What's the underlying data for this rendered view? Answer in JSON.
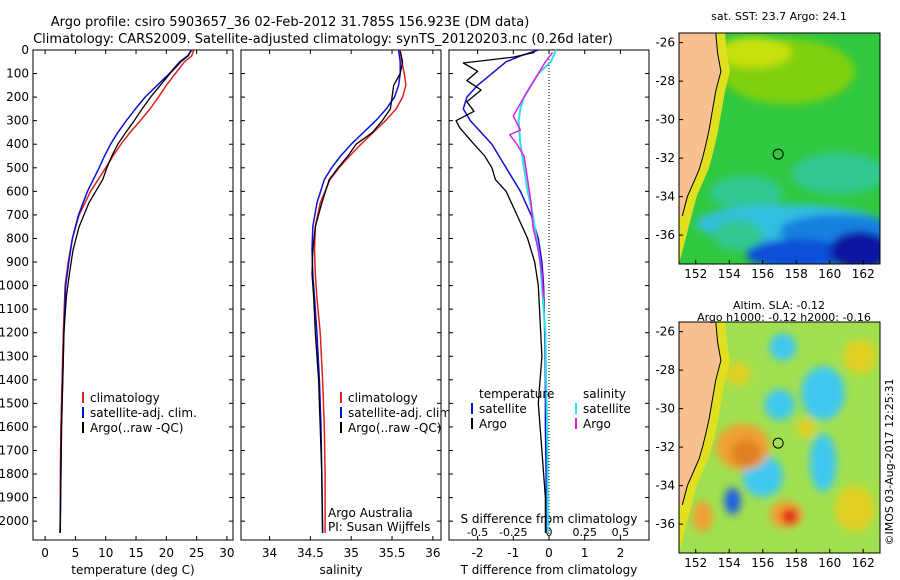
{
  "header": {
    "title_line1": "Argo profile: csiro 5903657_36 02-Feb-2012 31.785S 156.923E (DM data)",
    "title_line2": "Climatology: CARS2009. Satellite-adjusted climatology: synTS_20120203.nc (0.26d later)"
  },
  "colors": {
    "climatology": "#e02020",
    "satellite": "#1010d0",
    "argo": "#000000",
    "salinity_satellite": "#30e0e8",
    "salinity_argo": "#e020e0",
    "land": "#f8c090"
  },
  "footer": {
    "stamp": "©IMOS 03-Aug-2017 12:25:31"
  },
  "chart_data": [
    {
      "id": "temperature",
      "type": "line",
      "xlabel": "temperature (deg C)",
      "xlim": [
        -2,
        31
      ],
      "xticks": [
        0,
        5,
        10,
        15,
        20,
        25,
        30
      ],
      "xtick_labels": [
        "0",
        "5",
        "10",
        "15",
        "20",
        "25",
        "30"
      ],
      "ylim": [
        2080,
        0
      ],
      "yticks": [
        0,
        100,
        200,
        300,
        400,
        500,
        600,
        700,
        800,
        900,
        1000,
        1100,
        1200,
        1300,
        1400,
        1500,
        1600,
        1700,
        1800,
        1900,
        2000
      ],
      "legend": {
        "position": "lower-middle",
        "entries": [
          "climatology",
          "satellite-adj. clim.",
          "Argo(..raw -QC)"
        ]
      },
      "series": [
        {
          "name": "climatology",
          "color": "#e02020",
          "width": 1.5,
          "x": [
            24.5,
            24.2,
            23.0,
            21.5,
            20.0,
            18.7,
            17.3,
            15.7,
            14.0,
            12.5,
            11.2,
            10.0,
            7.5,
            5.6,
            4.5,
            3.8,
            3.3,
            3.0,
            2.8,
            2.6,
            2.5,
            2.5,
            2.4
          ],
          "y": [
            0,
            25,
            50,
            100,
            150,
            200,
            250,
            300,
            350,
            400,
            450,
            500,
            600,
            700,
            800,
            900,
            1000,
            1200,
            1400,
            1600,
            1800,
            2000,
            2050
          ]
        },
        {
          "name": "satellite-adj. clim.",
          "color": "#1010d0",
          "width": 1.5,
          "x": [
            24.2,
            23.5,
            22.2,
            20.5,
            18.5,
            16.5,
            14.9,
            13.4,
            12.0,
            10.8,
            9.8,
            8.9,
            7.0,
            5.5,
            4.5,
            3.9,
            3.4,
            3.1,
            2.9,
            2.7,
            2.6,
            2.5,
            2.5
          ],
          "y": [
            0,
            25,
            50,
            100,
            150,
            200,
            250,
            300,
            350,
            400,
            450,
            500,
            600,
            700,
            800,
            900,
            1000,
            1200,
            1400,
            1600,
            1800,
            2000,
            2050
          ]
        },
        {
          "name": "Argo(..raw -QC)",
          "color": "#000000",
          "width": 1.3,
          "x": [
            24.0,
            23.6,
            22.4,
            20.6,
            19.0,
            17.4,
            16.0,
            14.7,
            13.3,
            12.0,
            11.0,
            10.2,
            9.5,
            7.2,
            5.6,
            4.6,
            4.0,
            3.5,
            3.1,
            2.9,
            2.7,
            2.6,
            2.5,
            2.5
          ],
          "y": [
            5,
            25,
            50,
            100,
            150,
            200,
            250,
            300,
            350,
            400,
            450,
            500,
            550,
            650,
            750,
            850,
            950,
            1050,
            1200,
            1400,
            1600,
            1800,
            2000,
            2050
          ]
        }
      ]
    },
    {
      "id": "salinity",
      "type": "line",
      "xlabel": "salinity",
      "xlim": [
        33.65,
        36.1
      ],
      "xticks": [
        34,
        34.5,
        35,
        35.5,
        36
      ],
      "xtick_labels": [
        "34",
        "34.5",
        "35",
        "35.5",
        "36"
      ],
      "ylim": [
        2080,
        0
      ],
      "legend": {
        "position": "lower-right",
        "entries": [
          "climatology",
          "satellite-adj. clim.",
          "Argo(..raw -QC)"
        ]
      },
      "annotation": [
        "Argo Australia",
        "PI: Susan Wijffels"
      ],
      "series": [
        {
          "name": "climatology",
          "color": "#e02020",
          "width": 1.5,
          "x": [
            35.6,
            35.62,
            35.65,
            35.67,
            35.63,
            35.55,
            35.42,
            35.27,
            35.12,
            34.98,
            34.85,
            34.74,
            34.62,
            34.56,
            34.55,
            34.56,
            34.58,
            34.62,
            34.65,
            34.67,
            34.68,
            34.68
          ],
          "y": [
            0,
            50,
            100,
            150,
            200,
            250,
            300,
            350,
            400,
            450,
            500,
            550,
            650,
            750,
            850,
            950,
            1050,
            1200,
            1400,
            1600,
            1800,
            2050
          ]
        },
        {
          "name": "satellite-adj. clim.",
          "color": "#1010d0",
          "width": 1.5,
          "x": [
            35.58,
            35.6,
            35.6,
            35.58,
            35.53,
            35.43,
            35.3,
            35.15,
            35.0,
            34.87,
            34.76,
            34.67,
            34.58,
            34.53,
            34.52,
            34.53,
            34.55,
            34.58,
            34.61,
            34.63,
            34.64,
            34.65
          ],
          "y": [
            0,
            50,
            100,
            150,
            200,
            250,
            300,
            350,
            400,
            450,
            500,
            550,
            650,
            750,
            850,
            950,
            1050,
            1200,
            1400,
            1600,
            1800,
            2050
          ]
        },
        {
          "name": "Argo(..raw -QC)",
          "color": "#000000",
          "width": 1.3,
          "x": [
            35.6,
            35.63,
            35.6,
            35.52,
            35.48,
            35.38,
            35.26,
            35.06,
            34.96,
            34.84,
            34.73,
            34.64,
            34.56,
            34.53,
            34.52,
            34.54,
            34.56,
            34.6,
            34.62,
            34.64,
            34.65
          ],
          "y": [
            5,
            50,
            100,
            150,
            250,
            300,
            350,
            400,
            450,
            500,
            550,
            650,
            750,
            850,
            950,
            1050,
            1200,
            1400,
            1600,
            1800,
            2050
          ]
        }
      ]
    },
    {
      "id": "difference",
      "type": "line",
      "xlabel": "T difference from climatology",
      "top_label": "S difference from climatology",
      "xlim": [
        -2.8,
        2.8
      ],
      "xticks": [
        -2,
        -1,
        0,
        1,
        2
      ],
      "xtick_labels": [
        "-2",
        "-1",
        "0",
        "1",
        "2"
      ],
      "top_ticks": [
        -2,
        -1,
        0,
        1,
        2
      ],
      "top_tick_labels": [
        "-0.5",
        "-0.25",
        "0",
        "0.25",
        "0.5"
      ],
      "ylim": [
        2080,
        0
      ],
      "legend": {
        "position": "lower-middle",
        "headers": [
          "temperature",
          "salinity"
        ],
        "entries": [
          "satellite",
          "Argo",
          "satellite",
          "Argo"
        ]
      },
      "series": [
        {
          "name": "temperature satellite",
          "color": "#1010d0",
          "width": 1.5,
          "x": [
            -0.3,
            -0.8,
            -1.2,
            -1.6,
            -2.0,
            -2.3,
            -2.4,
            -2.2,
            -1.6,
            -1.2,
            -0.8,
            -0.5,
            -0.3,
            -0.2,
            -0.15,
            -0.12,
            -0.1,
            -0.1,
            -0.08,
            -0.08
          ],
          "y": [
            0,
            25,
            50,
            100,
            150,
            200,
            250,
            300,
            400,
            500,
            600,
            700,
            800,
            900,
            1000,
            1200,
            1400,
            1600,
            1800,
            2050
          ]
        },
        {
          "name": "temperature Argo",
          "color": "#000000",
          "width": 1.3,
          "x": [
            -0.4,
            -1.0,
            -2.4,
            -2.0,
            -2.3,
            -1.9,
            -2.3,
            -2.1,
            -2.6,
            -2.5,
            -2.1,
            -1.8,
            -1.6,
            -1.5,
            -1.2,
            -0.9,
            -0.6,
            -0.4,
            -0.3,
            -0.25,
            -0.2,
            -0.3,
            -0.2,
            -0.1,
            -0.1
          ],
          "y": [
            10,
            30,
            55,
            90,
            130,
            170,
            220,
            260,
            300,
            330,
            400,
            450,
            500,
            550,
            600,
            700,
            800,
            900,
            1000,
            1150,
            1300,
            1500,
            1700,
            1900,
            2050
          ]
        },
        {
          "name": "salinity satellite",
          "color": "#30e0e8",
          "width": 2,
          "x": [
            0.2,
            0.05,
            -0.3,
            -0.5,
            -0.7,
            -0.8,
            -0.85,
            -0.8,
            -0.7,
            -0.6,
            -0.45,
            -0.35,
            -0.25,
            -0.2,
            -0.15,
            -0.1,
            -0.08,
            -0.05,
            -0.04,
            -0.03
          ],
          "y": [
            0,
            50,
            100,
            150,
            200,
            250,
            300,
            400,
            500,
            600,
            700,
            800,
            900,
            1000,
            1100,
            1200,
            1400,
            1600,
            1800,
            2050
          ]
        },
        {
          "name": "salinity Argo",
          "color": "#e020e0",
          "width": 1.5,
          "x": [
            0.1,
            -0.1,
            -0.3,
            -0.5,
            -0.7,
            -1.0,
            -0.8,
            -1.1,
            -0.9,
            -0.7,
            -0.6,
            -0.5,
            -0.45,
            -0.3,
            -0.2,
            -0.15
          ],
          "y": [
            10,
            50,
            100,
            150,
            200,
            280,
            340,
            360,
            400,
            450,
            550,
            650,
            750,
            850,
            950,
            1050
          ]
        }
      ]
    },
    {
      "id": "sst_map",
      "type": "heatmap",
      "title": "sat. SST: 23.7 Argo: 24.1",
      "xticks": [
        152,
        154,
        156,
        158,
        160,
        162
      ],
      "yticks": [
        -26,
        -28,
        -30,
        -32,
        -34,
        -36
      ],
      "xlim": [
        151,
        163
      ],
      "ylim": [
        -37.5,
        -25.5
      ],
      "marker": {
        "lon": 156.92,
        "lat": -31.79
      },
      "coast": {
        "lon": [
          153.2,
          153.3,
          153.5,
          153.2,
          153.0,
          152.8,
          152.6,
          152.4,
          152.2,
          151.9,
          151.5,
          151.2
        ],
        "lat": [
          -25.5,
          -26.5,
          -27.5,
          -28.5,
          -29.5,
          -30.5,
          -31.3,
          -32.0,
          -32.6,
          -33.2,
          -34.0,
          -35.0
        ]
      },
      "color_zones": [
        {
          "color": "#80d010",
          "lon": 157.5,
          "lat": -27.5,
          "rx": 4.0,
          "ry": 1.7
        },
        {
          "color": "#c8e010",
          "lon": 155.5,
          "lat": -26.5,
          "rx": 2.2,
          "ry": 0.8
        },
        {
          "color": "#30c890",
          "lon": 160.5,
          "lat": -32.8,
          "rx": 2.8,
          "ry": 1.1
        },
        {
          "color": "#30c890",
          "lon": 155.0,
          "lat": -33.8,
          "rx": 2.2,
          "ry": 0.9
        },
        {
          "color": "#30c0e0",
          "lon": 157.5,
          "lat": -35.4,
          "rx": 5.5,
          "ry": 1.0
        },
        {
          "color": "#1880e0",
          "lon": 160.5,
          "lat": -35.8,
          "rx": 3.5,
          "ry": 0.9
        },
        {
          "color": "#1050d8",
          "lon": 158.0,
          "lat": -37.0,
          "rx": 3.0,
          "ry": 0.8
        },
        {
          "color": "#0818a0",
          "lon": 161.8,
          "lat": -36.8,
          "rx": 1.8,
          "ry": 1.0
        },
        {
          "color": "#30c890",
          "lon": 154.5,
          "lat": -36.0,
          "rx": 1.5,
          "ry": 0.8
        }
      ]
    },
    {
      "id": "sla_map",
      "type": "heatmap",
      "title": "Altim. SLA: -0.12",
      "subtitle": "Argo h1000: -0.12 h2000: -0.16",
      "xticks": [
        152,
        154,
        156,
        158,
        160,
        162
      ],
      "yticks": [
        -26,
        -28,
        -30,
        -32,
        -34,
        -36
      ],
      "xlim": [
        151,
        163
      ],
      "ylim": [
        -37.5,
        -25.5
      ],
      "marker": {
        "lon": 156.92,
        "lat": -31.79
      },
      "coast": {
        "lon": [
          153.2,
          153.3,
          153.5,
          153.2,
          153.0,
          152.8,
          152.6,
          152.4,
          152.2,
          151.9,
          151.5,
          151.2
        ],
        "lat": [
          -25.5,
          -26.5,
          -27.5,
          -28.5,
          -29.5,
          -30.5,
          -31.3,
          -32.0,
          -32.6,
          -33.2,
          -34.0,
          -35.0
        ]
      },
      "color_zones": [
        {
          "color": "#40c8f0",
          "lon": 157.2,
          "lat": -26.8,
          "rx": 0.8,
          "ry": 0.7
        },
        {
          "color": "#40c8f0",
          "lon": 159.6,
          "lat": -29.2,
          "rx": 1.3,
          "ry": 1.4
        },
        {
          "color": "#40c8f0",
          "lon": 157.0,
          "lat": -29.8,
          "rx": 0.9,
          "ry": 0.8
        },
        {
          "color": "#40c8f0",
          "lon": 156.0,
          "lat": -33.5,
          "rx": 1.2,
          "ry": 1.1
        },
        {
          "color": "#40c8f0",
          "lon": 159.6,
          "lat": -32.8,
          "rx": 0.8,
          "ry": 1.5
        },
        {
          "color": "#2060e0",
          "lon": 154.2,
          "lat": -34.8,
          "rx": 0.5,
          "ry": 0.7
        },
        {
          "color": "#f0a030",
          "lon": 154.8,
          "lat": -32.0,
          "rx": 1.6,
          "ry": 1.2
        },
        {
          "color": "#e08020",
          "lon": 155.0,
          "lat": -32.3,
          "rx": 0.9,
          "ry": 0.7
        },
        {
          "color": "#f0a030",
          "lon": 157.4,
          "lat": -35.5,
          "rx": 1.0,
          "ry": 0.7
        },
        {
          "color": "#e01818",
          "lon": 157.6,
          "lat": -35.6,
          "rx": 0.5,
          "ry": 0.4
        },
        {
          "color": "#f0a030",
          "lon": 152.4,
          "lat": -35.6,
          "rx": 0.6,
          "ry": 0.8
        },
        {
          "color": "#e0d020",
          "lon": 161.8,
          "lat": -27.3,
          "rx": 1.0,
          "ry": 0.9
        },
        {
          "color": "#e0d020",
          "lon": 161.5,
          "lat": -35.2,
          "rx": 1.2,
          "ry": 1.2
        },
        {
          "color": "#e0d020",
          "lon": 158.6,
          "lat": -31.0,
          "rx": 0.6,
          "ry": 0.5
        },
        {
          "color": "#e0d020",
          "lon": 154.5,
          "lat": -28.2,
          "rx": 0.8,
          "ry": 0.6
        }
      ]
    }
  ]
}
